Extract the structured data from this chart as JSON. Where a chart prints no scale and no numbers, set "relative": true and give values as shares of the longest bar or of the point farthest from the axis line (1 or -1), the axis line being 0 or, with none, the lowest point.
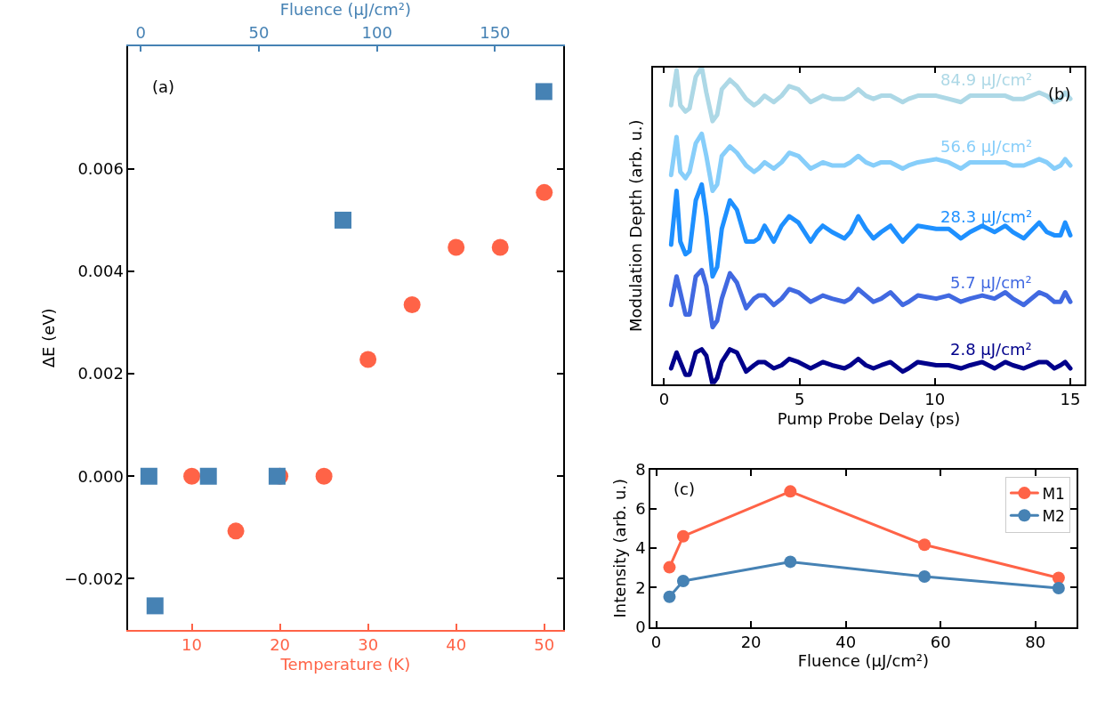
{
  "chart_data": [
    {
      "type": "scatter",
      "xlabel": "Temperature (K)",
      "x2label": "Fluence (μJ/cm²)",
      "ylabel": "ΔE (eV)",
      "annotations": [
        "(a)"
      ],
      "legend": false,
      "xlim": [
        2.8,
        52.1
      ],
      "xticks": [
        10,
        20,
        30,
        40,
        50
      ],
      "x2lim": [
        -5.3,
        178.7
      ],
      "x2ticks": [
        0,
        50,
        100,
        150
      ],
      "ylim": [
        -0.003,
        0.0084
      ],
      "yticks": [
        {
          "value": -0.002,
          "label": "−0.002"
        },
        {
          "value": 0,
          "label": "0.000"
        },
        {
          "value": 0.002,
          "label": "0.002"
        },
        {
          "value": 0.004,
          "label": "0.004"
        },
        {
          "value": 0.006,
          "label": "0.006"
        }
      ],
      "series": [
        {
          "color": "#ff6347",
          "marker": "circle",
          "x": [
            10,
            15,
            20,
            25,
            30,
            35,
            40,
            45,
            50
          ],
          "values": [
            0,
            -0.00107,
            0,
            0,
            0.00228,
            0.00335,
            0.00447,
            0.00447,
            0.00554
          ]
        },
        {
          "color": "#4682b4",
          "marker": "square",
          "axis": "x2",
          "x": [
            3.4,
            6.0,
            28.6,
            57.7,
            85.6,
            170.7
          ],
          "values": [
            0,
            -0.00253,
            0,
            0,
            0.005,
            0.00751
          ]
        }
      ]
    },
    {
      "type": "line",
      "relative": true,
      "xlabel": "Pump Probe Delay (ps)",
      "ylabel": "Modulation Depth (arb. u.)",
      "annotations": [
        "(b)"
      ],
      "legend": false,
      "xlim": [
        -0.42,
        15.54
      ],
      "xticks": [
        0,
        5,
        10,
        15
      ],
      "x": [
        0.26,
        0.46,
        0.6,
        0.79,
        0.94,
        1.17,
        1.39,
        1.56,
        1.79,
        1.96,
        2.13,
        2.43,
        2.69,
        3.03,
        3.32,
        3.49,
        3.71,
        4.05,
        4.34,
        4.62,
        4.96,
        5.41,
        5.64,
        5.86,
        6.2,
        6.66,
        6.88,
        7.17,
        7.45,
        7.73,
        8.02,
        8.36,
        8.81,
        9.03,
        9.37,
        10.05,
        10.51,
        10.96,
        11.3,
        11.75,
        12.2,
        12.6,
        12.88,
        13.28,
        13.85,
        14.13,
        14.41,
        14.64,
        14.81,
        15.0
      ],
      "series": [
        {
          "name": "84.9 μJ/cm²",
          "color": "#add8e6",
          "values": [
            0.88,
            0.99,
            0.88,
            0.86,
            0.87,
            0.97,
            1.0,
            0.92,
            0.83,
            0.85,
            0.93,
            0.96,
            0.94,
            0.9,
            0.88,
            0.89,
            0.91,
            0.89,
            0.91,
            0.94,
            0.93,
            0.89,
            0.9,
            0.91,
            0.9,
            0.9,
            0.91,
            0.93,
            0.91,
            0.9,
            0.91,
            0.91,
            0.89,
            0.9,
            0.91,
            0.91,
            0.9,
            0.89,
            0.91,
            0.91,
            0.91,
            0.91,
            0.9,
            0.9,
            0.92,
            0.91,
            0.89,
            0.9,
            0.92,
            0.9
          ]
        },
        {
          "name": "56.6 μJ/cm²",
          "color": "#87cefa",
          "values": [
            0.66,
            0.78,
            0.67,
            0.65,
            0.67,
            0.76,
            0.79,
            0.72,
            0.61,
            0.63,
            0.72,
            0.75,
            0.73,
            0.69,
            0.67,
            0.68,
            0.7,
            0.68,
            0.7,
            0.73,
            0.72,
            0.68,
            0.69,
            0.7,
            0.69,
            0.69,
            0.7,
            0.72,
            0.7,
            0.69,
            0.7,
            0.7,
            0.68,
            0.69,
            0.7,
            0.71,
            0.7,
            0.68,
            0.7,
            0.7,
            0.7,
            0.7,
            0.69,
            0.69,
            0.71,
            0.7,
            0.68,
            0.69,
            0.71,
            0.69
          ]
        },
        {
          "name": "28.3 μJ/cm²",
          "color": "#1e90ff",
          "values": [
            0.44,
            0.61,
            0.45,
            0.41,
            0.42,
            0.58,
            0.63,
            0.53,
            0.34,
            0.37,
            0.49,
            0.58,
            0.55,
            0.45,
            0.45,
            0.46,
            0.5,
            0.45,
            0.5,
            0.53,
            0.51,
            0.45,
            0.48,
            0.5,
            0.48,
            0.46,
            0.48,
            0.53,
            0.49,
            0.46,
            0.48,
            0.5,
            0.45,
            0.47,
            0.5,
            0.49,
            0.49,
            0.46,
            0.48,
            0.5,
            0.48,
            0.5,
            0.48,
            0.46,
            0.51,
            0.48,
            0.47,
            0.47,
            0.51,
            0.47
          ]
        },
        {
          "name": "5.7 μJ/cm²",
          "color": "#4169e1",
          "values": [
            0.25,
            0.34,
            0.29,
            0.22,
            0.22,
            0.34,
            0.36,
            0.31,
            0.18,
            0.2,
            0.27,
            0.35,
            0.32,
            0.24,
            0.27,
            0.28,
            0.28,
            0.25,
            0.27,
            0.3,
            0.29,
            0.26,
            0.27,
            0.28,
            0.27,
            0.26,
            0.27,
            0.3,
            0.28,
            0.26,
            0.27,
            0.29,
            0.25,
            0.26,
            0.28,
            0.27,
            0.28,
            0.26,
            0.27,
            0.28,
            0.27,
            0.29,
            0.27,
            0.25,
            0.29,
            0.28,
            0.26,
            0.26,
            0.29,
            0.26
          ]
        },
        {
          "name": "2.8 μJ/cm²",
          "color": "#00008b",
          "values": [
            0.05,
            0.1,
            0.07,
            0.03,
            0.03,
            0.1,
            0.11,
            0.09,
            0,
            0.02,
            0.07,
            0.11,
            0.1,
            0.04,
            0.06,
            0.07,
            0.07,
            0.05,
            0.06,
            0.08,
            0.07,
            0.05,
            0.06,
            0.07,
            0.06,
            0.05,
            0.06,
            0.08,
            0.06,
            0.05,
            0.06,
            0.07,
            0.04,
            0.05,
            0.07,
            0.06,
            0.06,
            0.05,
            0.06,
            0.07,
            0.05,
            0.07,
            0.06,
            0.05,
            0.07,
            0.07,
            0.05,
            0.06,
            0.07,
            0.05
          ]
        }
      ]
    },
    {
      "type": "line",
      "marker": "circle",
      "xlabel": "Fluence (μJ/cm²)",
      "ylabel": "Intensity (arb. u.)",
      "annotations": [
        "(c)"
      ],
      "legend": "top right",
      "xlim": [
        -1.2,
        88.6
      ],
      "xticks": [
        0,
        20,
        40,
        60,
        80
      ],
      "ylim": [
        0,
        8
      ],
      "yticks": [
        0,
        2,
        4,
        6,
        8
      ],
      "x": [
        2.8,
        5.7,
        28.3,
        56.6,
        84.9
      ],
      "series": [
        {
          "name": "M1",
          "color": "#ff6347",
          "values": [
            3.03,
            4.61,
            6.89,
            4.18,
            2.49
          ]
        },
        {
          "name": "M2",
          "color": "#4682b4",
          "values": [
            1.53,
            2.33,
            3.31,
            2.56,
            1.97
          ]
        }
      ]
    }
  ]
}
